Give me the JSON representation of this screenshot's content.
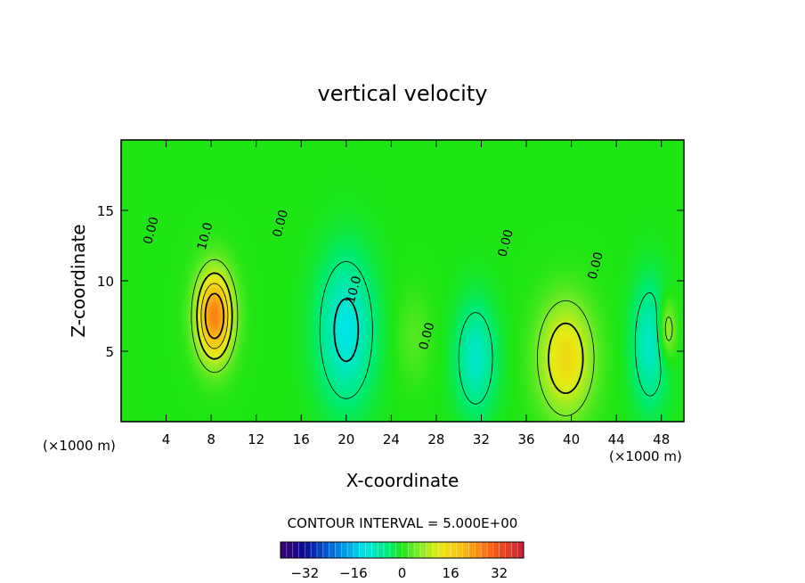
{
  "chart_data": {
    "type": "heatmap",
    "title": "vertical velocity",
    "xlabel": "X-coordinate",
    "ylabel": "Z-coordinate",
    "x_unit": "(×1000 m)",
    "xlim": [
      0,
      50
    ],
    "ylim": [
      0,
      20
    ],
    "x_ticks": [
      4,
      8,
      12,
      16,
      20,
      24,
      28,
      32,
      36,
      40,
      44,
      48
    ],
    "y_ticks": [
      5,
      10,
      15
    ],
    "contour_interval_text": "CONTOUR INTERVAL = 5.000E+00",
    "contour_labels": [
      {
        "text": "0.00",
        "x": 3.0,
        "z": 13.5
      },
      {
        "text": "10.0",
        "x": 7.8,
        "z": 13.1
      },
      {
        "text": "0.00",
        "x": 14.5,
        "z": 14.0
      },
      {
        "text": "10.0",
        "x": 21.0,
        "z": 9.3
      },
      {
        "text": "0.00",
        "x": 27.5,
        "z": 6.0
      },
      {
        "text": "0.00",
        "x": 34.5,
        "z": 12.6
      },
      {
        "text": "0.00",
        "x": 42.5,
        "z": 11.0
      }
    ],
    "cells": [
      {
        "x": 8.3,
        "z": 7.5,
        "w": 1.6,
        "h": 1.2,
        "peak": 26
      },
      {
        "x": 20.0,
        "z": 6.5,
        "w": 2.5,
        "h": 2.0,
        "peak": -12
      },
      {
        "x": 31.5,
        "z": 4.5,
        "w": 1.8,
        "h": 1.5,
        "peak": -10
      },
      {
        "x": 39.5,
        "z": 4.5,
        "w": 2.4,
        "h": 1.5,
        "peak": 15
      },
      {
        "x": 47.0,
        "z": 5.5,
        "w": 1.6,
        "h": 1.7,
        "peak": -10
      },
      {
        "x": 48.5,
        "z": 6.5,
        "w": 0.8,
        "h": 0.8,
        "peak": 10
      },
      {
        "x": 26.0,
        "z": 6.0,
        "w": 1.6,
        "h": 1.2,
        "peak": 3
      }
    ],
    "colorbar": {
      "range": [
        -40,
        40
      ],
      "ticks": [
        -32,
        -16,
        0,
        16,
        32
      ],
      "tick_labels": [
        "−32",
        "−16",
        "0",
        "16",
        "32"
      ]
    }
  }
}
